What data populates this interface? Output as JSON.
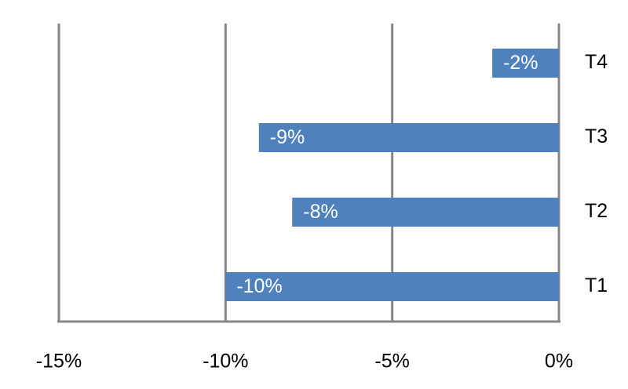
{
  "chart_data": {
    "type": "bar",
    "orientation": "horizontal",
    "categories": [
      "T1",
      "T2",
      "T3",
      "T4"
    ],
    "values": [
      -10,
      -8,
      -9,
      -2
    ],
    "value_labels": [
      "-10%",
      "-8%",
      "-9%",
      "-2%"
    ],
    "color": "#4f81bd",
    "xlim": [
      -15,
      0
    ],
    "xticks": [
      {
        "value": -15,
        "label": "-15%"
      },
      {
        "value": -10,
        "label": "-10%"
      },
      {
        "value": -5,
        "label": "-5%"
      },
      {
        "value": 0,
        "label": "0%"
      }
    ],
    "grid": true
  }
}
